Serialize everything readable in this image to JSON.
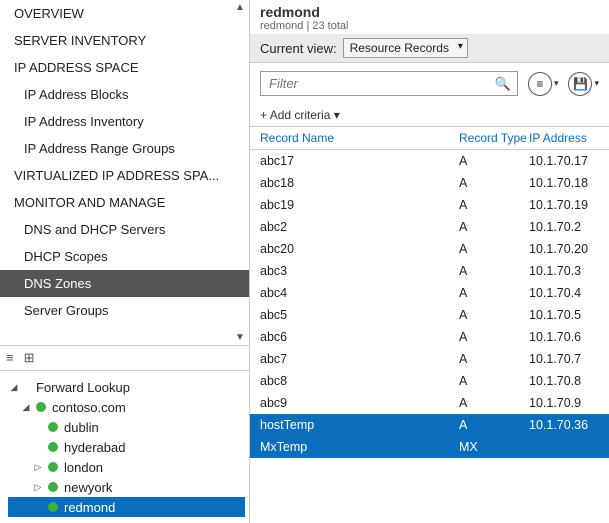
{
  "nav": {
    "items": [
      {
        "label": "OVERVIEW",
        "level": 0,
        "selected": false
      },
      {
        "label": "SERVER INVENTORY",
        "level": 0,
        "selected": false
      },
      {
        "label": "IP ADDRESS SPACE",
        "level": 0,
        "selected": false
      },
      {
        "label": "IP Address Blocks",
        "level": 1,
        "selected": false
      },
      {
        "label": "IP Address Inventory",
        "level": 1,
        "selected": false
      },
      {
        "label": "IP Address Range Groups",
        "level": 1,
        "selected": false
      },
      {
        "label": "VIRTUALIZED IP ADDRESS SPA...",
        "level": 0,
        "selected": false
      },
      {
        "label": "MONITOR AND MANAGE",
        "level": 0,
        "selected": false
      },
      {
        "label": "DNS and DHCP Servers",
        "level": 1,
        "selected": false
      },
      {
        "label": "DHCP Scopes",
        "level": 1,
        "selected": false
      },
      {
        "label": "DNS Zones",
        "level": 1,
        "selected": true
      },
      {
        "label": "Server Groups",
        "level": 1,
        "selected": false
      }
    ]
  },
  "tree": {
    "root_label": "Forward Lookup",
    "domain_label": "contoso.com",
    "nodes": [
      {
        "label": "dublin",
        "expander": "",
        "selected": false
      },
      {
        "label": "hyderabad",
        "expander": "",
        "selected": false
      },
      {
        "label": "london",
        "expander": "▷",
        "selected": false
      },
      {
        "label": "newyork",
        "expander": "▷",
        "selected": false
      },
      {
        "label": "redmond",
        "expander": "",
        "selected": true
      }
    ]
  },
  "header": {
    "title": "redmond",
    "subtitle": "redmond | 23 total"
  },
  "view": {
    "label": "Current view:",
    "value": "Resource Records"
  },
  "filter": {
    "placeholder": "Filter"
  },
  "criteria": {
    "label": "Add criteria"
  },
  "grid": {
    "columns": {
      "name": "Record Name",
      "type": "Record Type",
      "ip": "IP Address"
    },
    "rows": [
      {
        "name": "abc17",
        "type": "A",
        "ip": "10.1.70.17",
        "selected": false
      },
      {
        "name": "abc18",
        "type": "A",
        "ip": "10.1.70.18",
        "selected": false
      },
      {
        "name": "abc19",
        "type": "A",
        "ip": "10.1.70.19",
        "selected": false
      },
      {
        "name": "abc2",
        "type": "A",
        "ip": "10.1.70.2",
        "selected": false
      },
      {
        "name": "abc20",
        "type": "A",
        "ip": "10.1.70.20",
        "selected": false
      },
      {
        "name": "abc3",
        "type": "A",
        "ip": "10.1.70.3",
        "selected": false
      },
      {
        "name": "abc4",
        "type": "A",
        "ip": "10.1.70.4",
        "selected": false
      },
      {
        "name": "abc5",
        "type": "A",
        "ip": "10.1.70.5",
        "selected": false
      },
      {
        "name": "abc6",
        "type": "A",
        "ip": "10.1.70.6",
        "selected": false
      },
      {
        "name": "abc7",
        "type": "A",
        "ip": "10.1.70.7",
        "selected": false
      },
      {
        "name": "abc8",
        "type": "A",
        "ip": "10.1.70.8",
        "selected": false
      },
      {
        "name": "abc9",
        "type": "A",
        "ip": "10.1.70.9",
        "selected": false
      },
      {
        "name": "hostTemp",
        "type": "A",
        "ip": "10.1.70.36",
        "selected": true
      },
      {
        "name": "MxTemp",
        "type": "MX",
        "ip": "",
        "selected": true
      }
    ]
  },
  "colors": {
    "selection_bg": "#0a6ebd",
    "nav_selection_bg": "#555555",
    "link": "#0a6ebd",
    "status_dot": "#3cb043"
  }
}
